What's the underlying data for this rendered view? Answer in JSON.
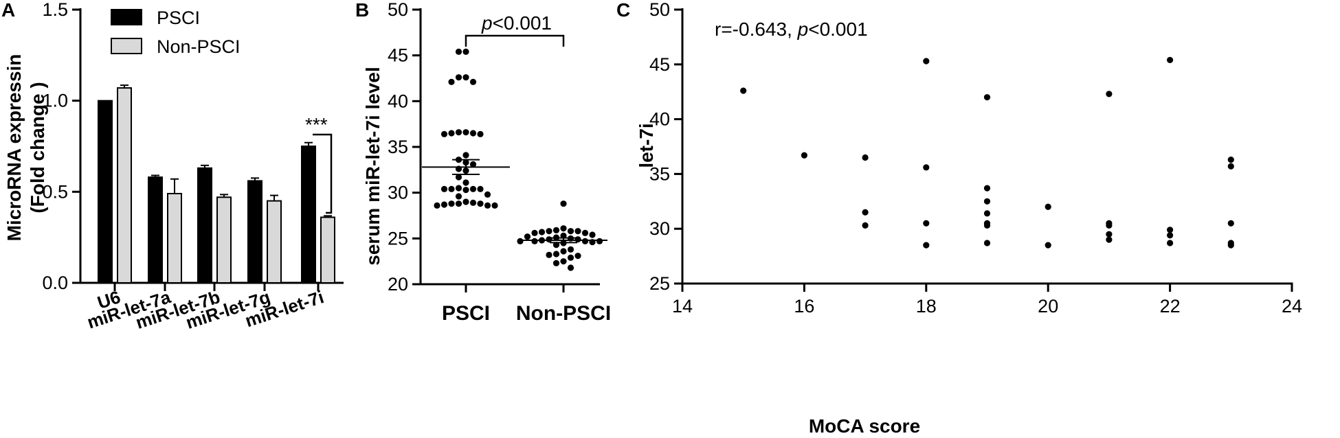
{
  "chart_data": [
    {
      "panel": "A",
      "type": "bar",
      "ylabel_line1": "MicroRNA expressin",
      "ylabel_line2": "(Fold change )",
      "ylim": [
        0,
        1.5
      ],
      "yticks": [
        0.0,
        0.5,
        1.0,
        1.5
      ],
      "ytick_labels": [
        "0.0",
        "0.5",
        "1.0",
        "1.5"
      ],
      "categories": [
        "U6",
        "miR-let-7a",
        "miR-let-7b",
        "miR-let-7g",
        "miR-let-7i"
      ],
      "series": [
        {
          "name": "PSCI",
          "color": "#000000",
          "values": [
            1.0,
            0.58,
            0.63,
            0.56,
            0.75
          ],
          "errors": [
            0.0,
            0.01,
            0.015,
            0.015,
            0.02
          ]
        },
        {
          "name": "Non-PSCI",
          "color": "#d9d9d9",
          "values": [
            1.07,
            0.49,
            0.47,
            0.45,
            0.36
          ],
          "errors": [
            0.015,
            0.08,
            0.015,
            0.03,
            0.008
          ]
        }
      ],
      "annotation": "***",
      "legend_position": "top-center"
    },
    {
      "panel": "B",
      "type": "scatter",
      "ylabel": "serum miR-let-7i level",
      "ylim": [
        20,
        50
      ],
      "yticks": [
        20,
        25,
        30,
        35,
        40,
        45,
        50
      ],
      "ytick_labels": [
        "20",
        "25",
        "30",
        "35",
        "40",
        "45",
        "50"
      ],
      "categories": [
        "PSCI",
        "Non-PSCI"
      ],
      "annotation_p": "p",
      "annotation_rest": "<0.001",
      "groups": [
        {
          "name": "PSCI",
          "mean": 32.8,
          "sem": 0.8,
          "points": [
            45.4,
            45.4,
            42.6,
            42.6,
            42.1,
            42.1,
            36.6,
            36.6,
            36.5,
            36.5,
            36.4,
            36.4,
            34.1,
            33.6,
            33.3,
            33.1,
            32.6,
            32.4,
            31.7,
            31.1,
            30.5,
            30.4,
            30.4,
            30.4,
            30.4,
            30.3,
            29.8,
            29.6,
            29.0,
            28.9,
            28.8,
            28.8,
            28.8,
            28.7,
            28.6,
            28.6,
            28.6
          ]
        },
        {
          "name": "Non-PSCI",
          "mean": 24.8,
          "sem": 0.25,
          "points": [
            28.8,
            26.1,
            25.9,
            25.8,
            25.8,
            25.8,
            25.7,
            25.6,
            25.6,
            25.4,
            25.3,
            25.2,
            25.1,
            25.0,
            24.9,
            24.9,
            24.8,
            24.7,
            24.7,
            24.7,
            24.7,
            24.6,
            24.5,
            24.3,
            23.8,
            23.6,
            23.3,
            23.2,
            23.1,
            22.9,
            22.5,
            22.3,
            21.8
          ]
        }
      ]
    },
    {
      "panel": "C",
      "type": "scatter",
      "xlabel": "MoCA score",
      "ylabel": "let-7i",
      "xlim": [
        14,
        24
      ],
      "ylim": [
        25,
        50
      ],
      "xticks": [
        14,
        16,
        18,
        20,
        22,
        24
      ],
      "xtick_labels": [
        "14",
        "16",
        "18",
        "20",
        "22",
        "24"
      ],
      "yticks": [
        25,
        30,
        35,
        40,
        45,
        50
      ],
      "ytick_labels": [
        "25",
        "30",
        "35",
        "40",
        "45",
        "50"
      ],
      "annotation_r": "r=-0.643, ",
      "annotation_p": "p",
      "annotation_rest": "<0.001",
      "points": [
        [
          15,
          42.6
        ],
        [
          16,
          36.7
        ],
        [
          17,
          36.5
        ],
        [
          17,
          31.5
        ],
        [
          17,
          30.3
        ],
        [
          18,
          45.3
        ],
        [
          18,
          35.6
        ],
        [
          18,
          30.5
        ],
        [
          18,
          28.5
        ],
        [
          19,
          42.0
        ],
        [
          19,
          33.7
        ],
        [
          19,
          32.5
        ],
        [
          19,
          31.4
        ],
        [
          19,
          30.5
        ],
        [
          19,
          30.3
        ],
        [
          19,
          28.7
        ],
        [
          20,
          32.0
        ],
        [
          20,
          28.5
        ],
        [
          21,
          42.3
        ],
        [
          21,
          30.5
        ],
        [
          21,
          30.3
        ],
        [
          21,
          29.5
        ],
        [
          21,
          29.0
        ],
        [
          22,
          45.4
        ],
        [
          22,
          29.9
        ],
        [
          22,
          29.4
        ],
        [
          22,
          28.7
        ],
        [
          23,
          36.3
        ],
        [
          23,
          35.7
        ],
        [
          23,
          30.5
        ],
        [
          23,
          28.7
        ],
        [
          23,
          28.5
        ]
      ]
    }
  ]
}
